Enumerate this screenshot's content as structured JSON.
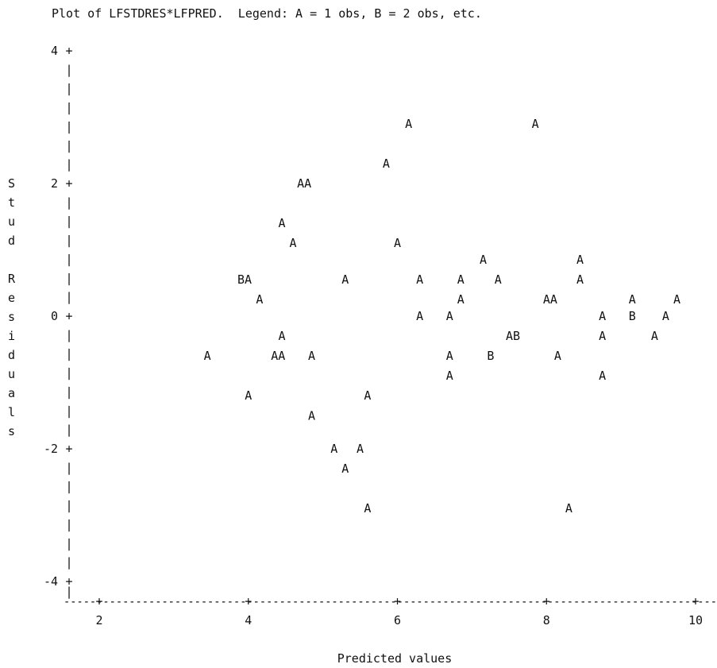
{
  "chart_data": {
    "type": "scatter",
    "title": "Plot of LFSTDRES*LFPRED.  Legend: A = 1 obs, B = 2 obs, etc.",
    "xlabel": "Predicted values",
    "ylabel": "Stud Residuals",
    "xlim": [
      1.5,
      10.2
    ],
    "ylim": [
      -4,
      4
    ],
    "x_ticks": [
      "2",
      "4",
      "6",
      "8",
      "10"
    ],
    "y_ticks": [
      "4",
      "2",
      "0",
      "-2",
      "-4"
    ],
    "grid": false,
    "points": [
      {
        "x": 6.15,
        "y": 2.9,
        "label": "A"
      },
      {
        "x": 7.85,
        "y": 2.9,
        "label": "A"
      },
      {
        "x": 5.85,
        "y": 2.3,
        "label": "A"
      },
      {
        "x": 4.75,
        "y": 2.0,
        "label": "AA"
      },
      {
        "x": 4.45,
        "y": 1.4,
        "label": "A"
      },
      {
        "x": 4.6,
        "y": 1.1,
        "label": "A"
      },
      {
        "x": 6.0,
        "y": 1.1,
        "label": "A"
      },
      {
        "x": 7.15,
        "y": 0.85,
        "label": "A"
      },
      {
        "x": 8.45,
        "y": 0.85,
        "label": "A"
      },
      {
        "x": 3.95,
        "y": 0.55,
        "label": "BA"
      },
      {
        "x": 5.3,
        "y": 0.55,
        "label": "A"
      },
      {
        "x": 6.3,
        "y": 0.55,
        "label": "A"
      },
      {
        "x": 6.85,
        "y": 0.55,
        "label": "A"
      },
      {
        "x": 7.35,
        "y": 0.55,
        "label": "A"
      },
      {
        "x": 8.45,
        "y": 0.55,
        "label": "A"
      },
      {
        "x": 4.15,
        "y": 0.25,
        "label": "A"
      },
      {
        "x": 6.85,
        "y": 0.25,
        "label": "A"
      },
      {
        "x": 8.05,
        "y": 0.25,
        "label": "AA"
      },
      {
        "x": 9.15,
        "y": 0.25,
        "label": "A"
      },
      {
        "x": 9.75,
        "y": 0.25,
        "label": "A"
      },
      {
        "x": 6.3,
        "y": 0.0,
        "label": "A"
      },
      {
        "x": 6.7,
        "y": 0.0,
        "label": "A"
      },
      {
        "x": 8.75,
        "y": 0.0,
        "label": "A"
      },
      {
        "x": 9.15,
        "y": 0.0,
        "label": "B"
      },
      {
        "x": 9.6,
        "y": 0.0,
        "label": "A"
      },
      {
        "x": 4.45,
        "y": -0.3,
        "label": "A"
      },
      {
        "x": 7.55,
        "y": -0.3,
        "label": "AB"
      },
      {
        "x": 8.75,
        "y": -0.3,
        "label": "A"
      },
      {
        "x": 9.45,
        "y": -0.3,
        "label": "A"
      },
      {
        "x": 3.45,
        "y": -0.6,
        "label": "A"
      },
      {
        "x": 4.4,
        "y": -0.6,
        "label": "AA"
      },
      {
        "x": 4.85,
        "y": -0.6,
        "label": "A"
      },
      {
        "x": 6.7,
        "y": -0.6,
        "label": "A"
      },
      {
        "x": 7.25,
        "y": -0.6,
        "label": "B"
      },
      {
        "x": 8.15,
        "y": -0.6,
        "label": "A"
      },
      {
        "x": 6.7,
        "y": -0.9,
        "label": "A"
      },
      {
        "x": 8.75,
        "y": -0.9,
        "label": "A"
      },
      {
        "x": 4.0,
        "y": -1.2,
        "label": "A"
      },
      {
        "x": 5.6,
        "y": -1.2,
        "label": "A"
      },
      {
        "x": 4.85,
        "y": -1.5,
        "label": "A"
      },
      {
        "x": 5.15,
        "y": -2.0,
        "label": "A"
      },
      {
        "x": 5.5,
        "y": -2.0,
        "label": "A"
      },
      {
        "x": 5.3,
        "y": -2.3,
        "label": "A"
      },
      {
        "x": 5.6,
        "y": -2.9,
        "label": "A"
      },
      {
        "x": 8.3,
        "y": -2.9,
        "label": "A"
      }
    ]
  }
}
